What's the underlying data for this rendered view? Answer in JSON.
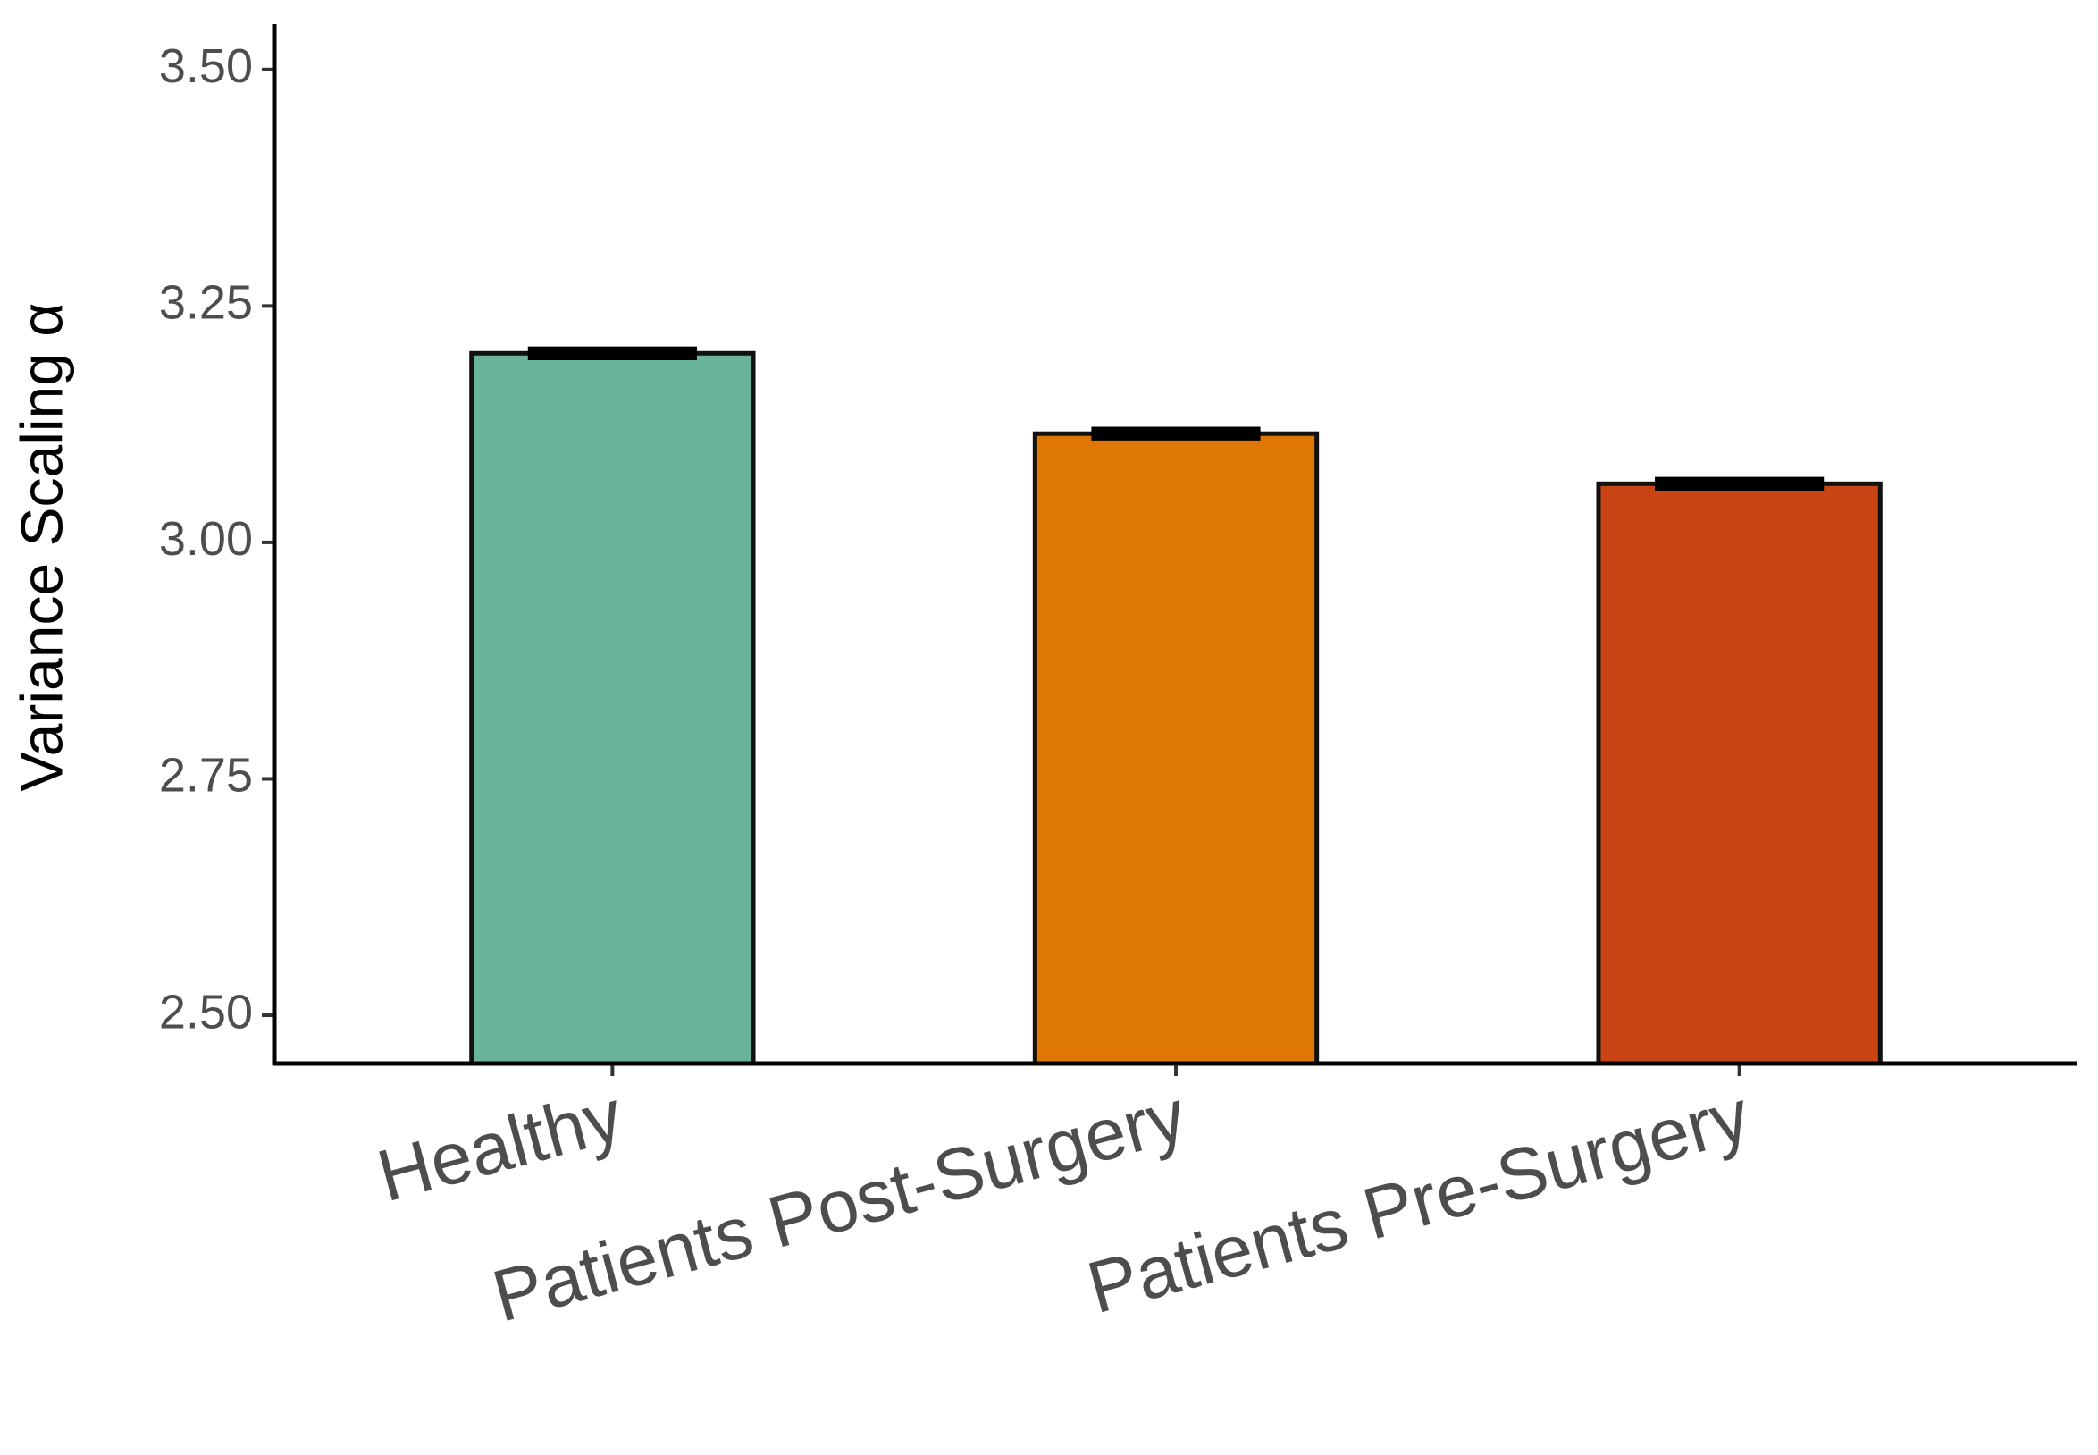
{
  "chart_data": {
    "type": "bar",
    "ylabel": "Variance Scaling α",
    "categories": [
      "Healthy",
      "Patients Post-Surgery",
      "Patients Pre-Surgery"
    ],
    "values": [
      3.2,
      3.115,
      3.062
    ],
    "errors": [
      0.003,
      0.003,
      0.003
    ],
    "colors": [
      "#69b39a",
      "#df7706",
      "#c84413"
    ],
    "ylim": [
      2.449,
      3.548
    ],
    "yticks": [
      {
        "value": 2.5,
        "label": "2.50"
      },
      {
        "value": 2.75,
        "label": "2.75"
      },
      {
        "value": 3.0,
        "label": "3.00"
      },
      {
        "value": 3.25,
        "label": "3.25"
      },
      {
        "value": 3.5,
        "label": "3.50"
      }
    ],
    "grid": false
  }
}
